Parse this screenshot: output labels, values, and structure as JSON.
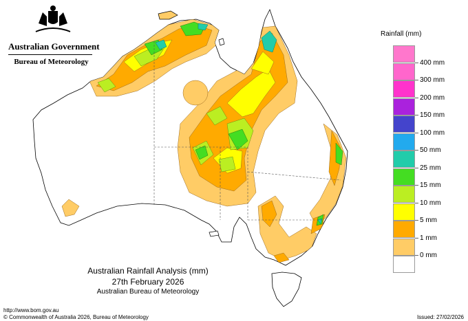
{
  "header": {
    "government": "Australian Government",
    "bureau": "Bureau of Meteorology"
  },
  "legend": {
    "title": "Rainfall (mm)",
    "classes": [
      {
        "label": "400 mm",
        "color": "#ff66cc"
      },
      {
        "label": "300 mm",
        "color": "#ff33cc"
      },
      {
        "label": "200 mm",
        "color": "#aa22dd"
      },
      {
        "label": "150 mm",
        "color": "#4444cc"
      },
      {
        "label": "100 mm",
        "color": "#22aaee"
      },
      {
        "label": "50 mm",
        "color": "#22ccaa"
      },
      {
        "label": "25 mm",
        "color": "#44dd22"
      },
      {
        "label": "15 mm",
        "color": "#bbee22"
      },
      {
        "label": "10 mm",
        "color": "#ffff00"
      },
      {
        "label": "5 mm",
        "color": "#ffaa00"
      },
      {
        "label": "1 mm",
        "color": "#ffcc66"
      },
      {
        "label": "0 mm",
        "color": "#ffffff"
      }
    ],
    "top_color": "#ff77cc"
  },
  "title": {
    "line1": "Australian Rainfall Analysis (mm)",
    "line2": "27th February 2026",
    "line3": "Australian Bureau of Meteorology"
  },
  "footer": {
    "url": "http://www.bom.gov.au",
    "copyright": "© Commonwealth of Australia 2026, Bureau of Meteorology",
    "issued": "Issued: 27/02/2026"
  }
}
